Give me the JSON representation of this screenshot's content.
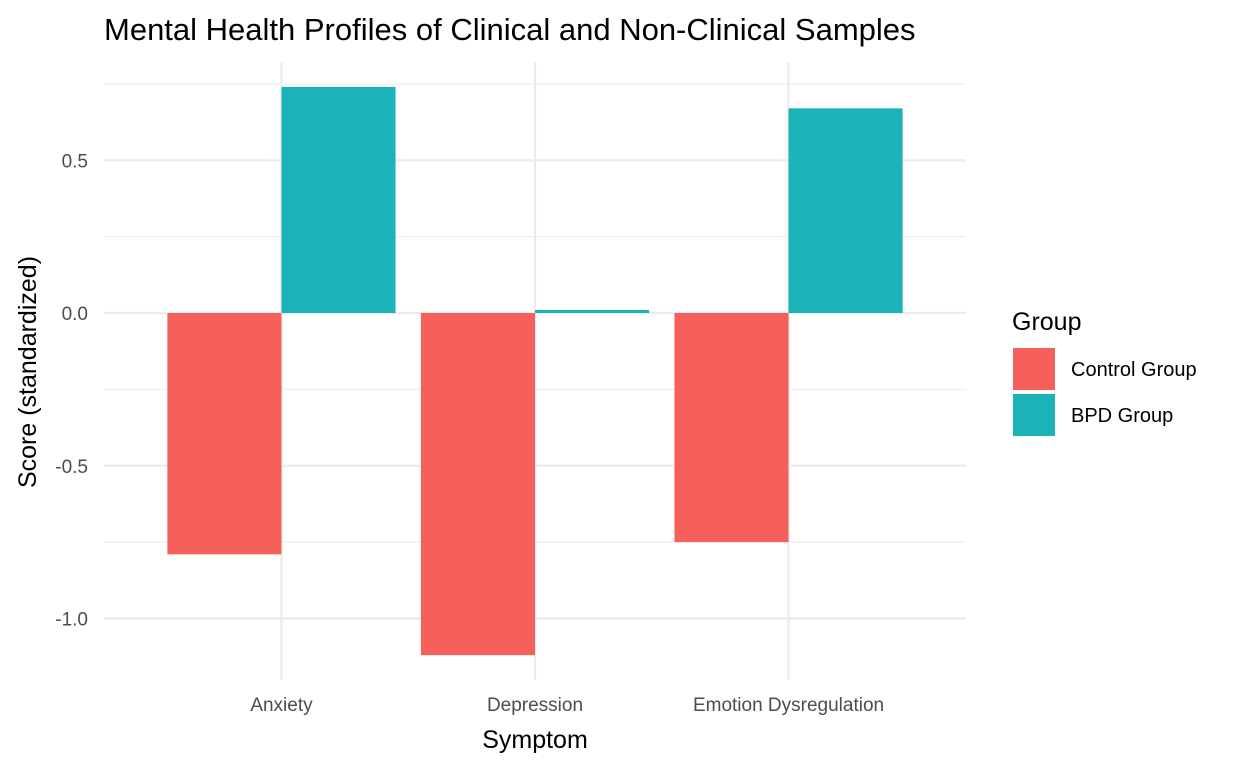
{
  "chart_data": {
    "type": "bar",
    "title": "Mental Health Profiles of Clinical and Non-Clinical Samples",
    "xlabel": "Symptom",
    "ylabel": "Score (standardized)",
    "categories": [
      "Anxiety",
      "Depression",
      "Emotion Dysregulation"
    ],
    "series": [
      {
        "name": "Control Group",
        "color": "#F8766D",
        "values": [
          -0.79,
          -1.12,
          -0.75
        ]
      },
      {
        "name": "BPD Group",
        "color": "#00BFC4",
        "values": [
          0.74,
          0.01,
          0.67
        ]
      }
    ],
    "ylim": [
      -1.2,
      0.75
    ],
    "yticks": [
      -1.0,
      -0.5,
      0.0,
      0.5
    ],
    "ytick_labels": [
      "-1.0",
      "-0.5",
      "0.0",
      "0.5"
    ],
    "legend": {
      "title": "Group",
      "placement": "right"
    },
    "grid": true,
    "bar_colors": {
      "control": "#F5605A",
      "bpd": "#1AB4B8"
    }
  }
}
